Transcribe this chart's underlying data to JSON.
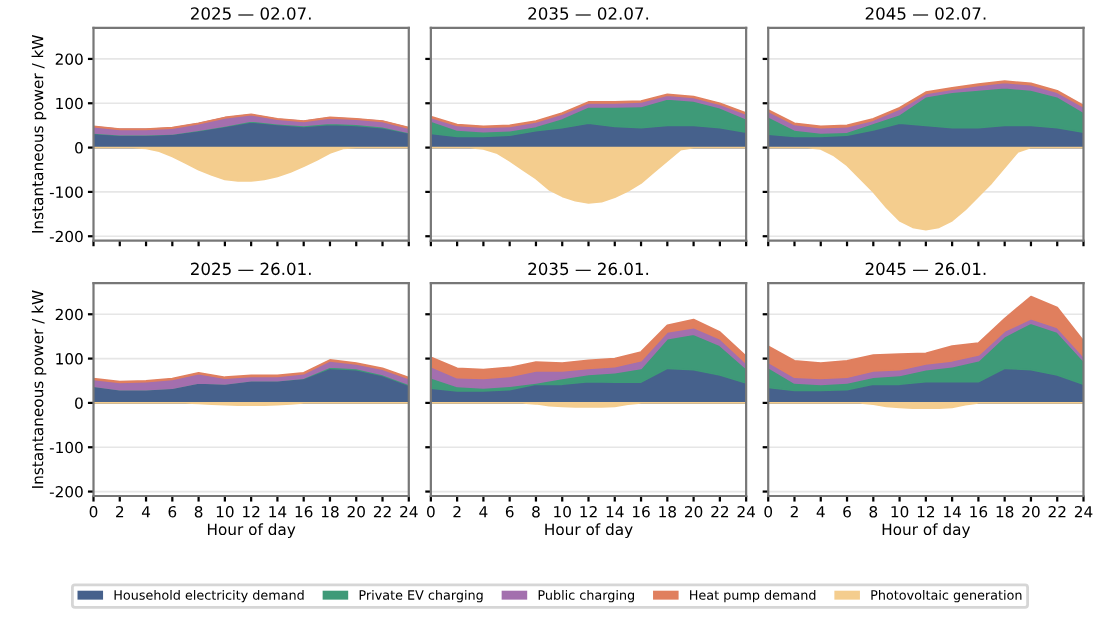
{
  "chart_data": [
    {
      "type": "area",
      "stacked": true,
      "title": "2025 — 02.07.",
      "ylabel": "Instantaneous power / kW",
      "x": [
        0,
        2,
        4,
        6,
        8,
        10,
        12,
        14,
        16,
        18,
        20,
        22,
        24
      ],
      "xlim": [
        0,
        24
      ],
      "xticks": [
        0,
        2,
        4,
        6,
        8,
        10,
        12,
        14,
        16,
        18,
        20,
        22,
        24
      ],
      "ylim": [
        -210,
        270
      ],
      "yticks": [
        -200,
        -100,
        0,
        100,
        200
      ],
      "grid": "y",
      "legend": "bottom",
      "tick_labels": "y",
      "series": [
        {
          "name": "Household electricity demand",
          "color": "#46618c",
          "values": [
            32,
            28,
            28,
            30,
            38,
            48,
            58,
            52,
            48,
            52,
            50,
            45,
            33
          ]
        },
        {
          "name": "Private EV charging",
          "color": "#3e9a78",
          "values": [
            1,
            1,
            1,
            1,
            1,
            1,
            2,
            2,
            2,
            3,
            3,
            2,
            1
          ]
        },
        {
          "name": "Public charging",
          "color": "#a36fae",
          "values": [
            14,
            12,
            12,
            13,
            15,
            18,
            14,
            10,
            9,
            12,
            11,
            12,
            10
          ]
        },
        {
          "name": "Heat pump demand",
          "color": "#e07f5e",
          "values": [
            1,
            1,
            1,
            1,
            1,
            1,
            1,
            1,
            1,
            1,
            1,
            1,
            1
          ]
        },
        {
          "name": "Photovoltaic generation",
          "color": "#f4cd8e",
          "x": [
            0,
            1,
            2,
            3,
            4,
            5,
            6,
            7,
            8,
            9,
            10,
            11,
            12,
            13,
            14,
            15,
            16,
            17,
            18,
            19,
            20,
            21,
            22,
            23,
            24
          ],
          "values": [
            0,
            0,
            0,
            0,
            -2,
            -8,
            -20,
            -35,
            -50,
            -62,
            -72,
            -75,
            -75,
            -72,
            -65,
            -55,
            -42,
            -28,
            -12,
            -2,
            0,
            0,
            0,
            0,
            0
          ]
        }
      ]
    },
    {
      "type": "area",
      "stacked": true,
      "title": "2035 — 02.07.",
      "x": [
        0,
        2,
        4,
        6,
        8,
        10,
        12,
        14,
        16,
        18,
        20,
        22,
        24
      ],
      "xlim": [
        0,
        24
      ],
      "xticks": [
        0,
        2,
        4,
        6,
        8,
        10,
        12,
        14,
        16,
        18,
        20,
        22,
        24
      ],
      "ylim": [
        -210,
        270
      ],
      "yticks": [
        -200,
        -100,
        0,
        100,
        200
      ],
      "grid": "y",
      "tick_labels": false,
      "series": [
        {
          "color": "#46618c",
          "values": [
            32,
            25,
            25,
            28,
            38,
            45,
            55,
            48,
            45,
            50,
            50,
            45,
            35
          ]
        },
        {
          "color": "#3e9a78",
          "values": [
            28,
            15,
            11,
            10,
            10,
            21,
            37,
            44,
            48,
            60,
            55,
            45,
            30
          ]
        },
        {
          "color": "#a36fae",
          "values": [
            8,
            10,
            10,
            10,
            10,
            10,
            9,
            9,
            10,
            8,
            8,
            8,
            11
          ]
        },
        {
          "color": "#e07f5e",
          "values": [
            2,
            2,
            2,
            2,
            2,
            2,
            2,
            2,
            2,
            2,
            2,
            2,
            2
          ]
        },
        {
          "color": "#f4cd8e",
          "x": [
            0,
            1,
            2,
            3,
            4,
            5,
            6,
            7,
            8,
            9,
            10,
            11,
            12,
            13,
            14,
            15,
            16,
            17,
            18,
            19,
            20,
            21,
            22,
            23,
            24
          ],
          "values": [
            0,
            0,
            0,
            0,
            -3,
            -12,
            -30,
            -50,
            -70,
            -95,
            -110,
            -120,
            -125,
            -122,
            -112,
            -98,
            -80,
            -55,
            -30,
            -5,
            0,
            0,
            0,
            0,
            0
          ]
        }
      ]
    },
    {
      "type": "area",
      "stacked": true,
      "title": "2045 — 02.07.",
      "x": [
        0,
        2,
        4,
        6,
        8,
        10,
        12,
        14,
        16,
        18,
        20,
        22,
        24
      ],
      "xlim": [
        0,
        24
      ],
      "xticks": [
        0,
        2,
        4,
        6,
        8,
        10,
        12,
        14,
        16,
        18,
        20,
        22,
        24
      ],
      "ylim": [
        -210,
        270
      ],
      "yticks": [
        -200,
        -100,
        0,
        100,
        200
      ],
      "grid": "y",
      "tick_labels": false,
      "series": [
        {
          "color": "#46618c",
          "values": [
            30,
            25,
            25,
            28,
            40,
            55,
            50,
            45,
            45,
            50,
            50,
            45,
            35
          ]
        },
        {
          "color": "#3e9a78",
          "values": [
            40,
            15,
            8,
            7,
            15,
            20,
            65,
            80,
            85,
            85,
            80,
            70,
            45
          ]
        },
        {
          "color": "#a36fae",
          "values": [
            12,
            12,
            12,
            12,
            7,
            12,
            7,
            7,
            10,
            12,
            12,
            10,
            12
          ]
        },
        {
          "color": "#e07f5e",
          "values": [
            3,
            3,
            3,
            3,
            3,
            3,
            3,
            3,
            3,
            3,
            3,
            3,
            3
          ]
        },
        {
          "color": "#f4cd8e",
          "x": [
            0,
            1,
            2,
            3,
            4,
            5,
            6,
            7,
            8,
            9,
            10,
            11,
            12,
            13,
            14,
            15,
            16,
            17,
            18,
            19,
            20,
            21,
            22,
            23,
            24
          ],
          "values": [
            0,
            0,
            0,
            0,
            -3,
            -18,
            -40,
            -70,
            -100,
            -135,
            -165,
            -180,
            -185,
            -180,
            -165,
            -140,
            -110,
            -80,
            -45,
            -10,
            0,
            0,
            0,
            0,
            0
          ]
        }
      ]
    },
    {
      "type": "area",
      "stacked": true,
      "title": "2025 — 26.01.",
      "xlabel": "Hour of day",
      "ylabel": "Instantaneous power / kW",
      "x": [
        0,
        2,
        4,
        6,
        8,
        10,
        12,
        14,
        16,
        18,
        20,
        22,
        24
      ],
      "xlim": [
        0,
        24
      ],
      "xticks": [
        0,
        2,
        4,
        6,
        8,
        10,
        12,
        14,
        16,
        18,
        20,
        22,
        24
      ],
      "ylim": [
        -210,
        270
      ],
      "yticks": [
        -200,
        -100,
        0,
        100,
        200
      ],
      "grid": "y",
      "series": [
        {
          "color": "#46618c",
          "values": [
            38,
            30,
            30,
            33,
            45,
            43,
            50,
            50,
            55,
            78,
            75,
            62,
            40
          ]
        },
        {
          "color": "#3e9a78",
          "values": [
            0,
            0,
            0,
            0,
            0,
            0,
            0,
            0,
            1,
            3,
            3,
            2,
            2
          ]
        },
        {
          "color": "#a36fae",
          "values": [
            15,
            16,
            18,
            20,
            21,
            13,
            10,
            10,
            10,
            14,
            10,
            12,
            13
          ]
        },
        {
          "color": "#e07f5e",
          "values": [
            2,
            2,
            2,
            2,
            2,
            2,
            2,
            2,
            2,
            2,
            2,
            2,
            2
          ]
        },
        {
          "color": "#f4cd8e",
          "x": [
            0,
            1,
            2,
            3,
            4,
            5,
            6,
            7,
            8,
            9,
            10,
            11,
            12,
            13,
            14,
            15,
            16,
            17,
            18,
            19,
            20,
            21,
            22,
            23,
            24
          ],
          "values": [
            0,
            0,
            0,
            0,
            0,
            0,
            0,
            0,
            -1,
            -3,
            -4,
            -5,
            -5,
            -5,
            -4,
            -2,
            0,
            0,
            0,
            0,
            0,
            0,
            0,
            0,
            0
          ]
        }
      ]
    },
    {
      "type": "area",
      "stacked": true,
      "title": "2035 — 26.01.",
      "xlabel": "Hour of day",
      "x": [
        0,
        2,
        4,
        6,
        8,
        10,
        12,
        14,
        16,
        18,
        20,
        22,
        24
      ],
      "xlim": [
        0,
        24
      ],
      "xticks": [
        0,
        2,
        4,
        6,
        8,
        10,
        12,
        14,
        16,
        18,
        20,
        22,
        24
      ],
      "ylim": [
        -210,
        270
      ],
      "yticks": [
        -200,
        -100,
        0,
        100,
        200
      ],
      "grid": "y",
      "tick_labels": "x",
      "series": [
        {
          "color": "#46618c",
          "values": [
            33,
            27,
            27,
            30,
            42,
            42,
            48,
            47,
            47,
            78,
            75,
            63,
            45
          ]
        },
        {
          "color": "#3e9a78",
          "values": [
            24,
            10,
            7,
            8,
            3,
            13,
            16,
            21,
            31,
            67,
            80,
            67,
            33
          ]
        },
        {
          "color": "#a36fae",
          "values": [
            25,
            20,
            21,
            22,
            27,
            17,
            14,
            14,
            17,
            15,
            15,
            15,
            12
          ]
        },
        {
          "color": "#e07f5e",
          "values": [
            21,
            21,
            20,
            20,
            20,
            18,
            18,
            18,
            20,
            15,
            18,
            15,
            15
          ]
        },
        {
          "color": "#f4cd8e",
          "x": [
            0,
            1,
            2,
            3,
            4,
            5,
            6,
            7,
            8,
            9,
            10,
            11,
            12,
            13,
            14,
            15,
            16,
            17,
            18,
            19,
            20,
            21,
            22,
            23,
            24
          ],
          "values": [
            0,
            0,
            0,
            0,
            0,
            0,
            0,
            0,
            -2,
            -6,
            -8,
            -9,
            -9,
            -9,
            -8,
            -3,
            0,
            0,
            0,
            0,
            0,
            0,
            0,
            0,
            0
          ]
        }
      ]
    },
    {
      "type": "area",
      "stacked": true,
      "title": "2045 — 26.01.",
      "xlabel": "Hour of day",
      "x": [
        0,
        2,
        4,
        6,
        8,
        10,
        12,
        14,
        16,
        18,
        20,
        22,
        24
      ],
      "xlim": [
        0,
        24
      ],
      "xticks": [
        0,
        2,
        4,
        6,
        8,
        10,
        12,
        14,
        16,
        18,
        20,
        22,
        24
      ],
      "ylim": [
        -210,
        270
      ],
      "yticks": [
        -200,
        -100,
        0,
        100,
        200
      ],
      "grid": "y",
      "tick_labels": "x",
      "series": [
        {
          "color": "#46618c",
          "values": [
            35,
            28,
            28,
            30,
            42,
            42,
            48,
            48,
            48,
            78,
            75,
            63,
            42
          ]
        },
        {
          "color": "#3e9a78",
          "values": [
            45,
            17,
            14,
            15,
            16,
            20,
            27,
            34,
            47,
            72,
            105,
            97,
            53
          ]
        },
        {
          "color": "#a36fae",
          "values": [
            12,
            13,
            13,
            13,
            14,
            13,
            13,
            13,
            13,
            12,
            10,
            10,
            10
          ]
        },
        {
          "color": "#e07f5e",
          "values": [
            36,
            37,
            35,
            37,
            36,
            35,
            24,
            33,
            27,
            28,
            50,
            45,
            35
          ]
        },
        {
          "color": "#f4cd8e",
          "x": [
            0,
            1,
            2,
            3,
            4,
            5,
            6,
            7,
            8,
            9,
            10,
            11,
            12,
            13,
            14,
            15,
            16,
            17,
            18,
            19,
            20,
            21,
            22,
            23,
            24
          ],
          "values": [
            0,
            0,
            0,
            0,
            0,
            0,
            0,
            0,
            -3,
            -8,
            -10,
            -12,
            -12,
            -12,
            -10,
            -4,
            0,
            0,
            0,
            0,
            0,
            0,
            0,
            0,
            0
          ]
        }
      ]
    }
  ]
}
